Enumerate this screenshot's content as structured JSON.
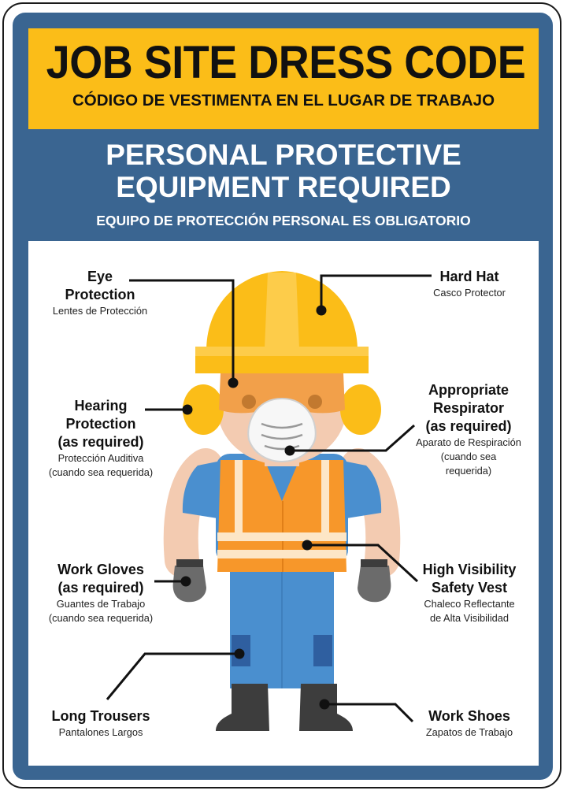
{
  "header": {
    "title": "JOB SITE DRESS CODE",
    "subtitle": "CÓDIGO DE VESTIMENTA EN EL LUGAR DE TRABAJO"
  },
  "section": {
    "title_line1": "PERSONAL PROTECTIVE",
    "title_line2": "EQUIPMENT REQUIRED",
    "subtitle": "EQUIPO DE PROTECCIÓN PERSONAL ES OBLIGATORIO"
  },
  "labels": {
    "eye": {
      "en_line1": "Eye",
      "en_line2": "Protection",
      "es": "Lentes de Protección"
    },
    "hearing": {
      "en_line1": "Hearing",
      "en_line2": "Protection",
      "en_line3": "(as required)",
      "es_line1": "Protección Auditiva",
      "es_line2": "(cuando sea requerida)"
    },
    "gloves": {
      "en_line1": "Work Gloves",
      "en_line2": "(as required)",
      "es_line1": "Guantes de Trabajo",
      "es_line2": "(cuando sea requerida)"
    },
    "trousers": {
      "en": "Long Trousers",
      "es": "Pantalones Largos"
    },
    "hardhat": {
      "en": "Hard Hat",
      "es": "Casco Protector"
    },
    "respirator": {
      "en_line1": "Appropriate",
      "en_line2": "Respirator",
      "en_line3": "(as required)",
      "es_line1": "Aparato de Respiración",
      "es_line2": "(cuando sea",
      "es_line3": "requerida)"
    },
    "vest": {
      "en_line1": "High Visibility",
      "en_line2": "Safety Vest",
      "es_line1": "Chaleco Reflectante",
      "es_line2": "de Alta Visibilidad"
    },
    "shoes": {
      "en": "Work Shoes",
      "es": "Zapatos de Trabajo"
    }
  },
  "colors": {
    "sign_blue": "#3a6591",
    "header_yellow": "#fbbd18",
    "helmet": "#fbbd18",
    "vest_orange": "#f7972a",
    "clothing_blue": "#4a8fcf",
    "boots": "#3d3d3d",
    "gloves": "#6b6b6b",
    "skin": "#f3cbb1"
  }
}
